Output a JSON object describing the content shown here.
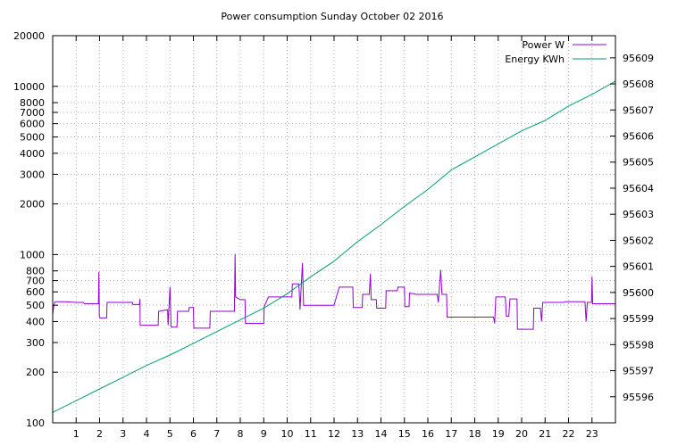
{
  "chart_data": {
    "type": "line",
    "title": "Power consumption Sunday October 02 2016",
    "x": {
      "range": [
        0,
        24
      ],
      "tick_values": [
        1,
        2,
        3,
        4,
        5,
        6,
        7,
        8,
        9,
        10,
        11,
        12,
        13,
        14,
        15,
        16,
        17,
        18,
        19,
        20,
        21,
        22,
        23
      ]
    },
    "y_left": {
      "scale": "log",
      "range": [
        100,
        20000
      ],
      "tick_values": [
        100,
        200,
        300,
        400,
        500,
        600,
        700,
        800,
        1000,
        2000,
        3000,
        4000,
        5000,
        6000,
        7000,
        8000,
        10000,
        20000
      ]
    },
    "y_right": {
      "scale": "linear",
      "range": [
        95595.0,
        95609.85
      ],
      "tick_values": [
        95596,
        95597,
        95598,
        95599,
        95600,
        95601,
        95602,
        95603,
        95604,
        95605,
        95606,
        95607,
        95608,
        95609
      ]
    },
    "grid": true,
    "legend_position": "top-right",
    "series": [
      {
        "name": "Power W",
        "axis": "left",
        "color": "#9400d3",
        "points": [
          [
            0,
            440
          ],
          [
            0.05,
            500
          ],
          [
            0.1,
            525
          ],
          [
            0.5,
            525
          ],
          [
            1.0,
            520
          ],
          [
            1.3,
            520
          ],
          [
            1.35,
            510
          ],
          [
            1.95,
            510
          ],
          [
            1.97,
            790
          ],
          [
            1.99,
            430
          ],
          [
            2.02,
            420
          ],
          [
            2.3,
            420
          ],
          [
            2.32,
            520
          ],
          [
            3.4,
            520
          ],
          [
            3.42,
            505
          ],
          [
            3.7,
            505
          ],
          [
            3.72,
            545
          ],
          [
            3.73,
            380
          ],
          [
            4.5,
            380
          ],
          [
            4.52,
            460
          ],
          [
            4.9,
            470
          ],
          [
            4.92,
            380
          ],
          [
            5.0,
            640
          ],
          [
            5.05,
            370
          ],
          [
            5.3,
            370
          ],
          [
            5.32,
            460
          ],
          [
            5.8,
            460
          ],
          [
            5.82,
            485
          ],
          [
            6.0,
            485
          ],
          [
            6.02,
            365
          ],
          [
            6.7,
            365
          ],
          [
            6.72,
            460
          ],
          [
            7.75,
            460
          ],
          [
            7.78,
            1010
          ],
          [
            7.8,
            560
          ],
          [
            8.0,
            540
          ],
          [
            8.2,
            540
          ],
          [
            8.22,
            390
          ],
          [
            9.0,
            390
          ],
          [
            9.02,
            490
          ],
          [
            9.2,
            560
          ],
          [
            10.2,
            560
          ],
          [
            10.22,
            670
          ],
          [
            10.5,
            670
          ],
          [
            10.55,
            470
          ],
          [
            10.65,
            890
          ],
          [
            10.7,
            500
          ],
          [
            12.0,
            500
          ],
          [
            12.1,
            560
          ],
          [
            12.22,
            640
          ],
          [
            12.8,
            640
          ],
          [
            12.82,
            485
          ],
          [
            13.2,
            485
          ],
          [
            13.22,
            580
          ],
          [
            13.5,
            580
          ],
          [
            13.55,
            770
          ],
          [
            13.58,
            540
          ],
          [
            13.8,
            540
          ],
          [
            13.82,
            480
          ],
          [
            14.2,
            480
          ],
          [
            14.22,
            610
          ],
          [
            14.7,
            610
          ],
          [
            14.72,
            640
          ],
          [
            15.0,
            640
          ],
          [
            15.02,
            490
          ],
          [
            15.2,
            490
          ],
          [
            15.22,
            590
          ],
          [
            15.5,
            580
          ],
          [
            16.4,
            580
          ],
          [
            16.45,
            520
          ],
          [
            16.5,
            660
          ],
          [
            16.55,
            810
          ],
          [
            16.6,
            580
          ],
          [
            16.8,
            580
          ],
          [
            16.82,
            425
          ],
          [
            18.8,
            425
          ],
          [
            18.85,
            390
          ],
          [
            18.9,
            560
          ],
          [
            19.3,
            560
          ],
          [
            19.35,
            430
          ],
          [
            19.45,
            430
          ],
          [
            19.5,
            545
          ],
          [
            19.8,
            545
          ],
          [
            19.82,
            360
          ],
          [
            20.5,
            360
          ],
          [
            20.52,
            480
          ],
          [
            20.8,
            480
          ],
          [
            20.85,
            400
          ],
          [
            20.9,
            520
          ],
          [
            21.8,
            520
          ],
          [
            21.85,
            525
          ],
          [
            22.7,
            525
          ],
          [
            22.75,
            400
          ],
          [
            22.8,
            520
          ],
          [
            22.98,
            520
          ],
          [
            23.0,
            740
          ],
          [
            23.03,
            510
          ],
          [
            24,
            510
          ]
        ]
      },
      {
        "name": "Energy KWh",
        "axis": "right",
        "color": "#009e73",
        "points": [
          [
            0,
            95595.4
          ],
          [
            1,
            95595.85
          ],
          [
            2,
            95596.3
          ],
          [
            3,
            95596.75
          ],
          [
            4,
            95597.2
          ],
          [
            5,
            95597.6
          ],
          [
            6,
            95598.05
          ],
          [
            7,
            95598.5
          ],
          [
            8,
            95598.95
          ],
          [
            9,
            95599.4
          ],
          [
            10,
            95599.95
          ],
          [
            11,
            95600.6
          ],
          [
            12,
            95601.2
          ],
          [
            13,
            95601.95
          ],
          [
            14,
            95602.6
          ],
          [
            15,
            95603.3
          ],
          [
            16,
            95603.95
          ],
          [
            17,
            95604.7
          ],
          [
            18,
            95605.2
          ],
          [
            19,
            95605.7
          ],
          [
            20,
            95606.2
          ],
          [
            21,
            95606.6
          ],
          [
            22,
            95607.15
          ],
          [
            23,
            95607.6
          ],
          [
            24,
            95608.1
          ]
        ]
      }
    ]
  }
}
